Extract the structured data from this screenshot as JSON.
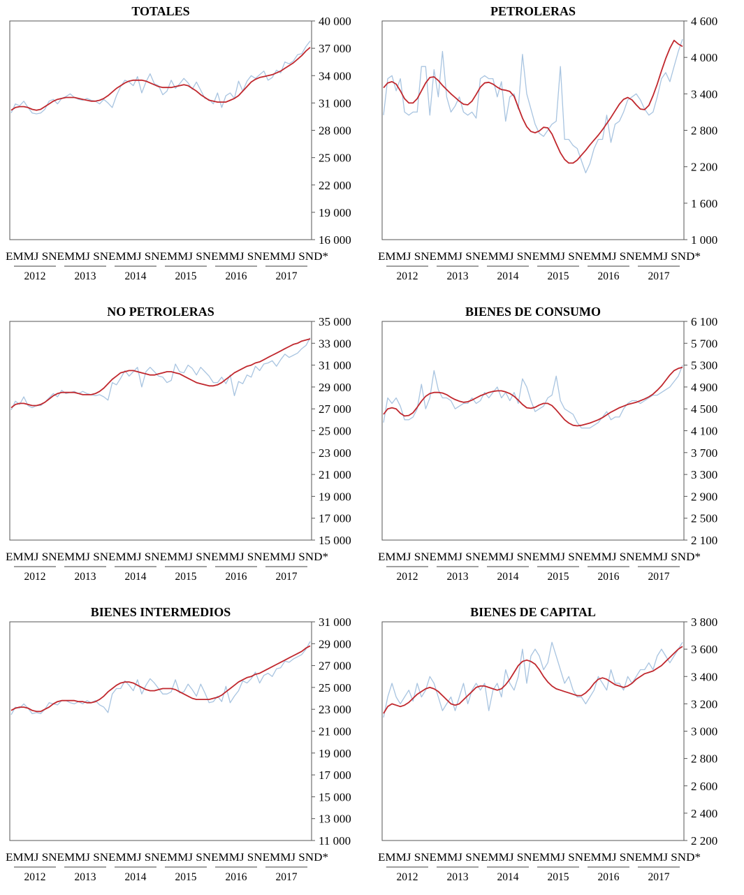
{
  "months_axis_label": "EMMJ SNEMMJ SNEMMJ SNEMMJ SNEMMJ SNEMMJ SND*",
  "years": [
    "2012",
    "2013",
    "2014",
    "2015",
    "2016",
    "2017"
  ],
  "colors": {
    "raw": "#a8c4e0",
    "trend": "#c0272d",
    "axis": "#555555"
  },
  "chart_data": [
    {
      "type": "line",
      "title": "TOTALES",
      "y_ticks": [
        "40 000",
        "37 000",
        "34 000",
        "31 000",
        "28 000",
        "25 000",
        "22 000",
        "19 000",
        "16 000"
      ],
      "ylim": [
        16000,
        40000
      ],
      "x_range": "2012-01 to 2017-12 (monthly)",
      "series": [
        {
          "values": [
            29900,
            30900,
            30700,
            31200,
            30500,
            29900,
            29800,
            29900,
            30300,
            31200,
            31400,
            30900,
            31500,
            31700,
            32000,
            31600,
            31400,
            31300,
            31500,
            31300,
            31200,
            30900,
            31400,
            31000,
            30500,
            31800,
            32800,
            33500,
            33300,
            32900,
            33900,
            32100,
            33300,
            34200,
            33100,
            32900,
            31900,
            32300,
            33500,
            32600,
            33100,
            33700,
            33200,
            32500,
            33300,
            32400,
            31500,
            31400,
            30900,
            32100,
            30500,
            31800,
            32100,
            31500,
            33400,
            32300,
            33400,
            34000,
            33700,
            34100,
            34500,
            33500,
            33800,
            34600,
            34300,
            35500,
            35300,
            35600,
            36300,
            36400,
            37200,
            37800
          ]
        },
        {
          "values": [
            30200,
            30500,
            30600,
            30600,
            30500,
            30300,
            30200,
            30300,
            30600,
            30900,
            31200,
            31400,
            31500,
            31600,
            31600,
            31600,
            31500,
            31400,
            31300,
            31200,
            31200,
            31300,
            31500,
            31800,
            32200,
            32600,
            32900,
            33200,
            33400,
            33500,
            33500,
            33500,
            33400,
            33200,
            33000,
            32800,
            32700,
            32700,
            32700,
            32800,
            32900,
            33000,
            32900,
            32600,
            32300,
            31900,
            31600,
            31300,
            31200,
            31100,
            31100,
            31100,
            31300,
            31500,
            31800,
            32300,
            32800,
            33300,
            33600,
            33800,
            33900,
            34000,
            34100,
            34300,
            34500,
            34800,
            35100,
            35400,
            35800,
            36200,
            36700,
            37100
          ]
        }
      ]
    },
    {
      "type": "line",
      "title": "PETROLERAS",
      "y_ticks": [
        "4 600",
        "4 000",
        "3 400",
        "2 800",
        "2 200",
        "1 600",
        "1 000"
      ],
      "ylim": [
        1000,
        4600
      ],
      "x_range": "2012-01 to 2017-12 (monthly)",
      "series": [
        {
          "values": [
            3050,
            3650,
            3700,
            3450,
            3650,
            3100,
            3050,
            3100,
            3100,
            3850,
            3850,
            3050,
            3800,
            3350,
            4100,
            3350,
            3100,
            3200,
            3350,
            3100,
            3050,
            3100,
            3000,
            3650,
            3700,
            3650,
            3650,
            3350,
            3600,
            2950,
            3350,
            3400,
            3150,
            4050,
            3400,
            3150,
            2900,
            2750,
            2700,
            2800,
            2900,
            2950,
            3850,
            2650,
            2650,
            2550,
            2500,
            2300,
            2100,
            2250,
            2500,
            2650,
            2650,
            3050,
            2600,
            2900,
            2950,
            3100,
            3300,
            3350,
            3400,
            3300,
            3150,
            3050,
            3100,
            3350,
            3650,
            3750,
            3600,
            3850,
            4100,
            4300
          ]
        },
        {
          "values": [
            3500,
            3580,
            3600,
            3560,
            3450,
            3320,
            3250,
            3250,
            3320,
            3450,
            3580,
            3670,
            3680,
            3620,
            3540,
            3470,
            3400,
            3340,
            3280,
            3230,
            3220,
            3280,
            3390,
            3510,
            3580,
            3590,
            3560,
            3510,
            3470,
            3460,
            3440,
            3360,
            3180,
            3000,
            2860,
            2780,
            2760,
            2790,
            2850,
            2840,
            2740,
            2580,
            2430,
            2320,
            2260,
            2260,
            2310,
            2390,
            2470,
            2560,
            2640,
            2720,
            2810,
            2910,
            3010,
            3120,
            3230,
            3310,
            3340,
            3300,
            3220,
            3150,
            3140,
            3210,
            3370,
            3560,
            3780,
            3980,
            4150,
            4280,
            4220,
            4180
          ]
        }
      ]
    },
    {
      "type": "line",
      "title": "NO PETROLERAS",
      "y_ticks": [
        "35 000",
        "33 000",
        "31 000",
        "29 000",
        "27 000",
        "25 000",
        "23 000",
        "21 000",
        "19 000",
        "17 000",
        "15 000"
      ],
      "ylim": [
        15000,
        35000
      ],
      "x_range": "2012-01 to 2017-12 (monthly)",
      "series": [
        {
          "values": [
            26900,
            27700,
            27400,
            28100,
            27300,
            27100,
            27300,
            27300,
            27600,
            28000,
            28400,
            28100,
            28700,
            28400,
            28500,
            28600,
            28400,
            28600,
            28400,
            28300,
            28200,
            28300,
            28100,
            27800,
            29400,
            29200,
            29800,
            30500,
            30000,
            30400,
            30800,
            29000,
            30400,
            30800,
            30400,
            30000,
            29900,
            29400,
            29600,
            31100,
            30400,
            30300,
            31000,
            30700,
            30100,
            30800,
            30400,
            30000,
            29400,
            29400,
            29900,
            29300,
            30100,
            28200,
            29500,
            29300,
            30100,
            29900,
            30900,
            30500,
            31100,
            31200,
            31400,
            30900,
            31500,
            32000,
            31700,
            31900,
            32100,
            32500,
            32800,
            33500
          ]
        },
        {
          "values": [
            27100,
            27400,
            27500,
            27500,
            27400,
            27300,
            27300,
            27400,
            27600,
            27900,
            28200,
            28400,
            28500,
            28500,
            28500,
            28500,
            28400,
            28300,
            28300,
            28300,
            28400,
            28600,
            28900,
            29300,
            29700,
            30000,
            30300,
            30400,
            30500,
            30500,
            30400,
            30300,
            30200,
            30100,
            30100,
            30200,
            30300,
            30400,
            30400,
            30300,
            30200,
            30000,
            29800,
            29600,
            29400,
            29300,
            29200,
            29100,
            29100,
            29200,
            29400,
            29700,
            30000,
            30300,
            30500,
            30700,
            30900,
            31000,
            31200,
            31300,
            31500,
            31700,
            31900,
            32100,
            32300,
            32500,
            32700,
            32900,
            33000,
            33200,
            33300,
            33400
          ]
        }
      ]
    },
    {
      "type": "line",
      "title": "BIENES DE CONSUMO",
      "y_ticks": [
        "6 100",
        "5 700",
        "5 300",
        "4 900",
        "4 500",
        "4 100",
        "3 700",
        "3 300",
        "2 900",
        "2 500",
        "2 100"
      ],
      "ylim": [
        2100,
        6100
      ],
      "x_range": "2012-01 to 2017-12 (monthly)",
      "series": [
        {
          "values": [
            4250,
            4700,
            4600,
            4700,
            4550,
            4300,
            4300,
            4350,
            4500,
            4950,
            4500,
            4700,
            5200,
            4850,
            4700,
            4700,
            4650,
            4500,
            4550,
            4600,
            4600,
            4700,
            4600,
            4650,
            4800,
            4700,
            4800,
            4900,
            4700,
            4800,
            4650,
            4800,
            4600,
            5050,
            4900,
            4650,
            4450,
            4500,
            4550,
            4700,
            4750,
            5100,
            4650,
            4500,
            4450,
            4400,
            4250,
            4150,
            4150,
            4150,
            4200,
            4250,
            4350,
            4450,
            4300,
            4350,
            4350,
            4500,
            4600,
            4650,
            4650,
            4600,
            4650,
            4700,
            4750,
            4750,
            4800,
            4850,
            4900,
            5000,
            5100,
            5300
          ]
        },
        {
          "values": [
            4400,
            4500,
            4520,
            4500,
            4420,
            4370,
            4380,
            4430,
            4530,
            4640,
            4730,
            4780,
            4800,
            4800,
            4790,
            4760,
            4710,
            4670,
            4640,
            4620,
            4630,
            4660,
            4700,
            4740,
            4770,
            4800,
            4820,
            4830,
            4830,
            4810,
            4780,
            4730,
            4660,
            4580,
            4520,
            4510,
            4530,
            4570,
            4600,
            4600,
            4560,
            4480,
            4390,
            4300,
            4240,
            4200,
            4190,
            4200,
            4220,
            4240,
            4270,
            4300,
            4340,
            4390,
            4440,
            4480,
            4520,
            4550,
            4580,
            4600,
            4620,
            4650,
            4680,
            4720,
            4770,
            4840,
            4920,
            5020,
            5120,
            5200,
            5240,
            5260
          ]
        }
      ]
    },
    {
      "type": "line",
      "title": "BIENES INTERMEDIOS",
      "y_ticks": [
        "31 000",
        "29 000",
        "27 000",
        "25 000",
        "23 000",
        "21 000",
        "19 000",
        "17 000",
        "15 000",
        "13 000",
        "11 000"
      ],
      "ylim": [
        11000,
        31000
      ],
      "x_range": "2012-01 to 2017-12 (monthly)",
      "series": [
        {
          "values": [
            22500,
            23200,
            23100,
            23500,
            23100,
            22600,
            22700,
            22600,
            23000,
            23600,
            23500,
            23400,
            23800,
            23800,
            23600,
            23500,
            23700,
            23500,
            23800,
            23600,
            23800,
            23400,
            23200,
            22700,
            24400,
            24900,
            24900,
            25600,
            25200,
            24700,
            25700,
            24400,
            25200,
            25800,
            25400,
            24900,
            24400,
            24400,
            24600,
            25700,
            24500,
            24600,
            25300,
            24800,
            24200,
            25300,
            24500,
            23600,
            23700,
            24200,
            23700,
            25100,
            23600,
            24200,
            24700,
            25600,
            25400,
            25800,
            26400,
            25400,
            26100,
            26300,
            26000,
            26700,
            26800,
            27400,
            27300,
            27600,
            27800,
            28000,
            28500,
            29200
          ]
        },
        {
          "values": [
            22900,
            23100,
            23200,
            23200,
            23100,
            22900,
            22800,
            22800,
            23000,
            23200,
            23500,
            23700,
            23800,
            23800,
            23800,
            23800,
            23700,
            23700,
            23600,
            23600,
            23700,
            23900,
            24200,
            24600,
            24900,
            25200,
            25400,
            25500,
            25500,
            25400,
            25200,
            25000,
            24800,
            24700,
            24700,
            24800,
            24900,
            24900,
            24900,
            24800,
            24600,
            24400,
            24200,
            24000,
            23900,
            23900,
            23900,
            23900,
            24000,
            24100,
            24300,
            24600,
            24900,
            25200,
            25500,
            25700,
            25900,
            26000,
            26200,
            26300,
            26500,
            26700,
            26900,
            27100,
            27300,
            27500,
            27700,
            27900,
            28100,
            28300,
            28600,
            28800
          ]
        }
      ]
    },
    {
      "type": "line",
      "title": "BIENES DE CAPITAL",
      "y_ticks": [
        "3 800",
        "3 600",
        "3 400",
        "3 200",
        "3 000",
        "2 800",
        "2 600",
        "2 400",
        "2 200"
      ],
      "ylim": [
        2200,
        3800
      ],
      "x_range": "2012-01 to 2017-12 (monthly)",
      "series": [
        {
          "values": [
            3100,
            3250,
            3350,
            3250,
            3200,
            3250,
            3300,
            3220,
            3350,
            3250,
            3300,
            3400,
            3350,
            3250,
            3150,
            3200,
            3250,
            3150,
            3250,
            3350,
            3200,
            3300,
            3350,
            3300,
            3350,
            3150,
            3300,
            3350,
            3250,
            3450,
            3350,
            3300,
            3400,
            3600,
            3350,
            3550,
            3600,
            3550,
            3450,
            3500,
            3650,
            3550,
            3450,
            3350,
            3400,
            3300,
            3250,
            3250,
            3200,
            3250,
            3300,
            3400,
            3350,
            3300,
            3450,
            3350,
            3350,
            3300,
            3400,
            3350,
            3400,
            3450,
            3450,
            3500,
            3450,
            3550,
            3600,
            3550,
            3500,
            3550,
            3600,
            3650
          ]
        },
        {
          "values": [
            3130,
            3180,
            3200,
            3190,
            3180,
            3190,
            3210,
            3240,
            3270,
            3290,
            3310,
            3320,
            3310,
            3290,
            3260,
            3230,
            3200,
            3190,
            3200,
            3230,
            3260,
            3290,
            3320,
            3330,
            3330,
            3320,
            3310,
            3300,
            3310,
            3340,
            3380,
            3430,
            3480,
            3510,
            3520,
            3510,
            3490,
            3450,
            3400,
            3360,
            3330,
            3310,
            3300,
            3290,
            3280,
            3270,
            3260,
            3260,
            3280,
            3310,
            3350,
            3380,
            3390,
            3380,
            3360,
            3340,
            3330,
            3320,
            3330,
            3350,
            3380,
            3400,
            3420,
            3430,
            3440,
            3460,
            3480,
            3510,
            3540,
            3570,
            3600,
            3620
          ]
        }
      ]
    }
  ]
}
